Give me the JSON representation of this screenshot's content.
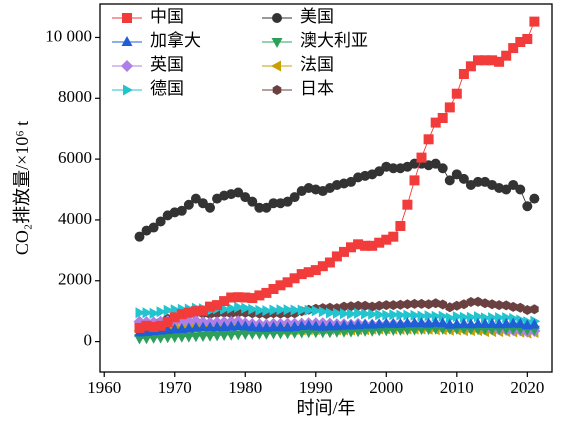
{
  "chart_data": {
    "type": "line",
    "x_label": "时间/年",
    "y_label": "CO₂排放量/×10⁶ t",
    "xlim": [
      1959.4,
      2023.5
    ],
    "ylim": [
      -1000,
      11100
    ],
    "xticks": [
      1960,
      1970,
      1980,
      1990,
      2000,
      2010,
      2020
    ],
    "yticks": [
      0,
      2000,
      4000,
      6000,
      8000,
      {
        "value": 10000,
        "label": "10 000"
      }
    ],
    "x": [
      1965,
      1966,
      1967,
      1968,
      1969,
      1970,
      1971,
      1972,
      1973,
      1974,
      1975,
      1976,
      1977,
      1978,
      1979,
      1980,
      1981,
      1982,
      1983,
      1984,
      1985,
      1986,
      1987,
      1988,
      1989,
      1990,
      1991,
      1992,
      1993,
      1994,
      1995,
      1996,
      1997,
      1998,
      1999,
      2000,
      2001,
      2002,
      2003,
      2004,
      2005,
      2006,
      2007,
      2008,
      2009,
      2010,
      2011,
      2012,
      2013,
      2014,
      2015,
      2016,
      2017,
      2018,
      2019,
      2020,
      2021
    ],
    "series": [
      {
        "name": "中国",
        "color": "#f23b3b",
        "marker": "square",
        "values": [
          450,
          520,
          480,
          520,
          640,
          800,
          900,
          950,
          1000,
          1020,
          1150,
          1200,
          1330,
          1450,
          1460,
          1450,
          1430,
          1520,
          1600,
          1730,
          1850,
          1950,
          2080,
          2220,
          2280,
          2350,
          2480,
          2600,
          2800,
          2950,
          3100,
          3200,
          3150,
          3150,
          3250,
          3350,
          3450,
          3800,
          4500,
          5300,
          6050,
          6650,
          7200,
          7350,
          7700,
          8150,
          8800,
          9050,
          9250,
          9250,
          9250,
          9200,
          9400,
          9650,
          9850,
          9950,
          10520
        ]
      },
      {
        "name": "美国",
        "color": "#333333",
        "marker": "circle",
        "values": [
          3450,
          3650,
          3750,
          3950,
          4150,
          4250,
          4300,
          4500,
          4700,
          4550,
          4400,
          4700,
          4800,
          4850,
          4900,
          4750,
          4600,
          4400,
          4400,
          4550,
          4550,
          4600,
          4750,
          4950,
          5050,
          5000,
          4950,
          5050,
          5150,
          5200,
          5250,
          5400,
          5450,
          5500,
          5600,
          5750,
          5700,
          5700,
          5750,
          5850,
          5850,
          5800,
          5850,
          5700,
          5300,
          5500,
          5350,
          5150,
          5250,
          5250,
          5150,
          5050,
          5000,
          5150,
          5000,
          4450,
          4700
        ]
      },
      {
        "name": "加拿大",
        "color": "#1f5fd6",
        "marker": "triangle-up",
        "values": [
          300,
          320,
          340,
          360,
          380,
          400,
          410,
          430,
          450,
          460,
          460,
          470,
          480,
          490,
          510,
          500,
          480,
          460,
          450,
          470,
          470,
          460,
          480,
          510,
          520,
          500,
          490,
          500,
          500,
          520,
          530,
          540,
          560,
          560,
          570,
          590,
          580,
          580,
          600,
          600,
          600,
          590,
          620,
          600,
          560,
          570,
          580,
          570,
          580,
          580,
          580,
          570,
          580,
          590,
          580,
          540,
          560
        ]
      },
      {
        "name": "澳大利亚",
        "color": "#2ca05a",
        "marker": "triangle-down",
        "values": [
          100,
          110,
          120,
          130,
          140,
          150,
          160,
          165,
          175,
          185,
          195,
          205,
          215,
          225,
          235,
          250,
          255,
          260,
          255,
          265,
          270,
          275,
          285,
          300,
          310,
          310,
          310,
          310,
          320,
          325,
          330,
          340,
          350,
          355,
          370,
          370,
          380,
          385,
          390,
          395,
          410,
          410,
          420,
          420,
          420,
          420,
          420,
          410,
          410,
          400,
          400,
          410,
          410,
          410,
          410,
          390,
          390
        ]
      },
      {
        "name": "英国",
        "color": "#b07fe6",
        "marker": "diamond",
        "values": [
          650,
          640,
          630,
          650,
          670,
          680,
          670,
          660,
          680,
          640,
          620,
          630,
          640,
          650,
          670,
          600,
          580,
          570,
          560,
          580,
          580,
          590,
          590,
          590,
          600,
          600,
          600,
          590,
          570,
          570,
          560,
          580,
          550,
          550,
          550,
          560,
          570,
          550,
          560,
          560,
          560,
          560,
          550,
          540,
          490,
          510,
          470,
          490,
          480,
          450,
          430,
          400,
          390,
          380,
          370,
          330,
          350
        ]
      },
      {
        "name": "法国",
        "color": "#c8a000",
        "marker": "triangle-left",
        "values": [
          350,
          360,
          380,
          400,
          430,
          450,
          470,
          490,
          520,
          500,
          470,
          500,
          490,
          510,
          520,
          490,
          460,
          440,
          430,
          420,
          400,
          390,
          390,
          380,
          390,
          390,
          410,
          400,
          380,
          380,
          380,
          390,
          390,
          410,
          410,
          410,
          410,
          400,
          410,
          410,
          410,
          400,
          390,
          390,
          370,
          380,
          360,
          360,
          360,
          330,
          330,
          330,
          330,
          320,
          310,
          280,
          300
        ]
      },
      {
        "name": "德国",
        "color": "#22c4d0",
        "marker": "triangle-right",
        "values": [
          950,
          950,
          930,
          980,
          1030,
          1050,
          1060,
          1070,
          1100,
          1080,
          1020,
          1080,
          1060,
          1090,
          1130,
          1100,
          1060,
          1030,
          1020,
          1040,
          1050,
          1050,
          1040,
          1040,
          1030,
          1010,
          980,
          940,
          930,
          920,
          910,
          930,
          910,
          900,
          880,
          870,
          880,
          870,
          870,
          860,
          840,
          850,
          830,
          830,
          780,
          820,
          800,
          800,
          820,
          780,
          790,
          790,
          790,
          760,
          710,
          650,
          670
        ]
      },
      {
        "name": "日本",
        "color": "#6b4040",
        "marker": "hexagon",
        "values": [
          400,
          450,
          550,
          650,
          750,
          800,
          850,
          900,
          950,
          920,
          900,
          930,
          950,
          920,
          950,
          950,
          930,
          920,
          900,
          930,
          920,
          920,
          930,
          1000,
          1050,
          1080,
          1100,
          1110,
          1100,
          1150,
          1160,
          1180,
          1180,
          1150,
          1180,
          1200,
          1200,
          1210,
          1230,
          1240,
          1240,
          1230,
          1260,
          1220,
          1130,
          1180,
          1230,
          1300,
          1310,
          1260,
          1230,
          1200,
          1190,
          1140,
          1110,
          1040,
          1060
        ]
      }
    ]
  }
}
